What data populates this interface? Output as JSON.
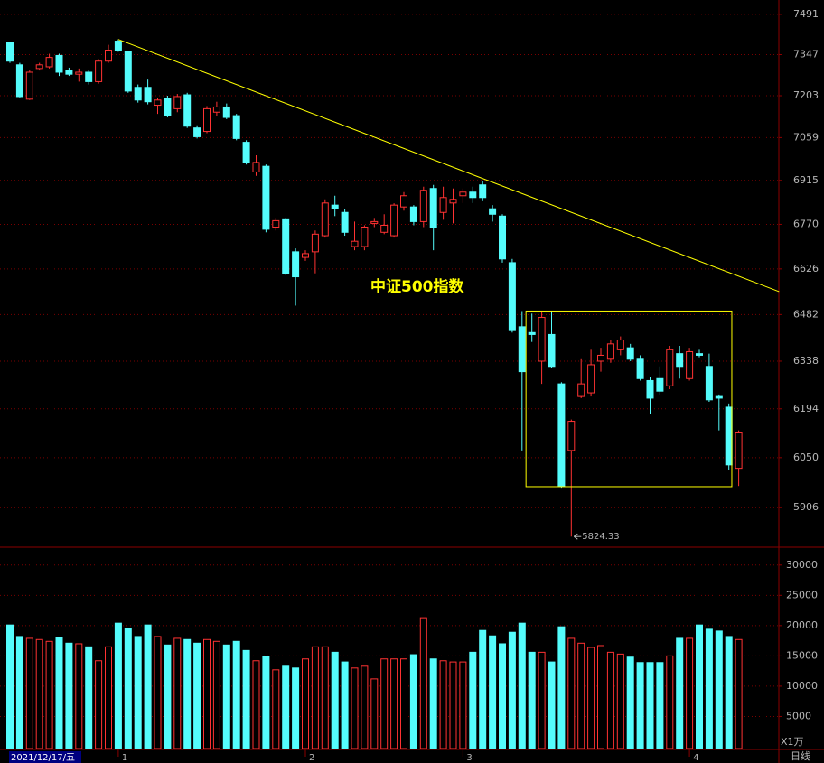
{
  "chart_data": [
    {
      "type": "candlestick",
      "title": "中证500指数",
      "log_scale": true,
      "grid": true,
      "up_color": "#ff3232",
      "down_color": "#54fcfc",
      "line_color": "#ffff00",
      "categories": [
        "2021/12/17/五",
        null,
        null,
        null,
        null,
        null,
        null,
        null,
        null,
        null,
        null,
        "1",
        null,
        null,
        null,
        null,
        null,
        null,
        null,
        null,
        null,
        null,
        null,
        null,
        null,
        null,
        null,
        null,
        null,
        null,
        "2",
        null,
        null,
        null,
        null,
        null,
        null,
        null,
        null,
        null,
        null,
        null,
        null,
        null,
        null,
        null,
        "3",
        null,
        null,
        null,
        null,
        null,
        null,
        null,
        null,
        null,
        null,
        null,
        null,
        null,
        null,
        null,
        null,
        null,
        null,
        null,
        null,
        null,
        null,
        "4",
        null,
        null,
        null,
        null,
        null
      ],
      "open": [
        7389,
        7311,
        7191,
        7298,
        7304,
        7344,
        7291,
        7278,
        7285,
        7252,
        7324,
        7395,
        7357,
        7232,
        7232,
        7170,
        7194,
        7158,
        7206,
        7092,
        7080,
        7146,
        7164,
        7134,
        7043,
        6943,
        6962,
        6761,
        6788,
        6681,
        6663,
        6681,
        6733,
        6833,
        6809,
        6698,
        6698,
        6773,
        6744,
        6733,
        6827,
        6827,
        6779,
        6888,
        6809,
        6840,
        6864,
        6876,
        6900,
        6821,
        6797,
        6646,
        6444,
        6426,
        6338,
        6420,
        6269,
        6071,
        6231,
        6242,
        6338,
        6344,
        6373,
        6379,
        6344,
        6279,
        6285,
        6263,
        6361,
        6285,
        6361,
        6322,
        6231,
        6199,
        6019
      ],
      "high": [
        7392,
        7318,
        7291,
        7318,
        7350,
        7350,
        7301,
        7298,
        7291,
        7331,
        7382,
        7401,
        7357,
        7242,
        7259,
        7194,
        7203,
        7209,
        7213,
        7101,
        7167,
        7182,
        7176,
        7140,
        7050,
        6999,
        6968,
        6791,
        6791,
        6692,
        6686,
        6750,
        6852,
        6864,
        6821,
        6779,
        6767,
        6791,
        6803,
        6839,
        6876,
        6833,
        6894,
        6900,
        6894,
        6888,
        6888,
        6894,
        6912,
        6833,
        6803,
        6658,
        6493,
        6485,
        6490,
        6493,
        6274,
        6162,
        6344,
        6373,
        6379,
        6403,
        6414,
        6391,
        6356,
        6290,
        6322,
        6385,
        6385,
        6379,
        6373,
        6361,
        6237,
        6210,
        6130
      ],
      "low": [
        7318,
        7197,
        7188,
        7291,
        7298,
        7272,
        7272,
        7252,
        7242,
        7245,
        7318,
        7357,
        7213,
        7179,
        7173,
        7140,
        7128,
        7146,
        7092,
        7056,
        7074,
        7134,
        7122,
        7050,
        6968,
        6930,
        6744,
        6750,
        6607,
        6510,
        6652,
        6612,
        6727,
        6797,
        6733,
        6686,
        6686,
        6761,
        6738,
        6727,
        6815,
        6767,
        6761,
        6686,
        6785,
        6773,
        6840,
        6840,
        6846,
        6779,
        6646,
        6426,
        6071,
        6397,
        6269,
        6317,
        5963,
        5824.33,
        6226,
        6231,
        6306,
        6333,
        6356,
        6338,
        6279,
        6178,
        6237,
        6253,
        6285,
        6279,
        6350,
        6215,
        6130,
        6014,
        5968
      ],
      "close": [
        7324,
        7200,
        7285,
        7311,
        7337,
        7285,
        7278,
        7285,
        7252,
        7324,
        7363,
        7363,
        7219,
        7188,
        7182,
        7188,
        7134,
        7200,
        7098,
        7062,
        7158,
        7164,
        7128,
        7056,
        6975,
        6975,
        6754,
        6782,
        6612,
        6601,
        6675,
        6738,
        6840,
        6821,
        6744,
        6715,
        6761,
        6779,
        6767,
        6833,
        6864,
        6779,
        6882,
        6761,
        6858,
        6852,
        6876,
        6858,
        6858,
        6803,
        6658,
        6432,
        6306,
        6420,
        6473,
        6322,
        5968,
        6157,
        6269,
        6327,
        6356,
        6391,
        6403,
        6344,
        6285,
        6226,
        6247,
        6373,
        6322,
        6367,
        6356,
        6221,
        6226,
        6029,
        6125
      ],
      "ylim": [
        5797,
        7543
      ],
      "yticks": [
        5906,
        6050,
        6194,
        6338,
        6482,
        6626,
        6770,
        6915,
        7059,
        7203,
        7347,
        7491
      ],
      "trendline": {
        "x": [
          11,
          78.1
        ],
        "y": [
          7401,
          6554
        ]
      },
      "box": {
        "x": [
          52.4,
          73.3
        ],
        "y": [
          6493,
          5966
        ]
      }
    },
    {
      "type": "volume",
      "unit_label": "X1万",
      "period_label": "日线",
      "grid": true,
      "values": [
        20100,
        18200,
        17900,
        17700,
        17400,
        18000,
        17100,
        17000,
        16500,
        14200,
        16500,
        20400,
        19500,
        18200,
        20100,
        18200,
        16800,
        17900,
        17700,
        17100,
        17700,
        17400,
        16800,
        17400,
        15900,
        14200,
        14900,
        12700,
        13300,
        13000,
        14500,
        16500,
        16500,
        15600,
        14000,
        13000,
        13300,
        11200,
        14500,
        14500,
        14500,
        15200,
        21300,
        14500,
        14200,
        14000,
        14000,
        15600,
        19200,
        18300,
        17000,
        18900,
        20400,
        15600,
        15600,
        14000,
        19800,
        17900,
        17100,
        16400,
        16700,
        15600,
        15300,
        14800,
        13900,
        13900,
        13900,
        15000,
        17900,
        17900,
        20100,
        19400,
        19100,
        18200,
        17700
      ],
      "ylim": [
        0,
        32800
      ],
      "yticks": [
        5000,
        10000,
        15000,
        20000,
        25000,
        30000
      ]
    }
  ]
}
